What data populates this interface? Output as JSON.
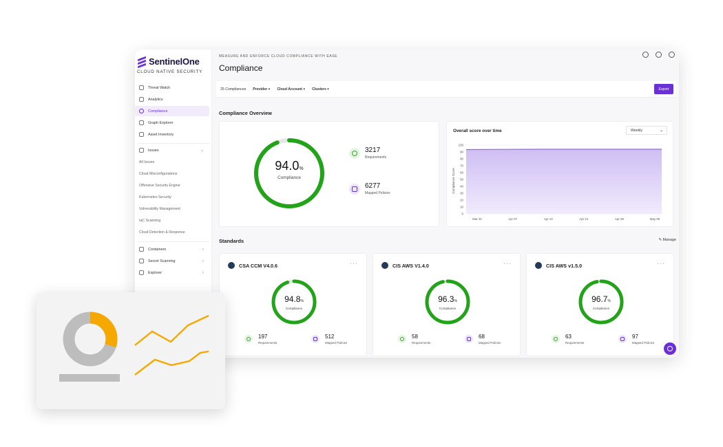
{
  "brand": {
    "name": "SentinelOne",
    "tagline": "CLOUD NATIVE SECURITY",
    "accent": "#6b2fd6"
  },
  "sidebar": {
    "primary": [
      {
        "label": "Threat Watch",
        "icon": "search-icon"
      },
      {
        "label": "Analytics",
        "icon": "bar-chart-icon"
      },
      {
        "label": "Compliance",
        "icon": "shield-check-icon",
        "active": true
      },
      {
        "label": "Graph Explorer",
        "icon": "graph-icon"
      },
      {
        "label": "Asset Inventory",
        "icon": "database-icon"
      }
    ],
    "issues": {
      "label": "Issues",
      "icon": "alert-icon",
      "items": [
        "All Issues",
        "Cloud Misconfigurations",
        "Offensive Security Engine",
        "Kubernetes Security",
        "Vulnerability Management",
        "IaC Scanning",
        "Cloud Detection & Response"
      ]
    },
    "secondary": [
      {
        "label": "Containers",
        "icon": "container-icon"
      },
      {
        "label": "Secret Scanning",
        "icon": "key-icon"
      },
      {
        "label": "Explorer",
        "icon": "compass-icon"
      }
    ]
  },
  "header": {
    "eyebrow": "MEASURE AND ENFORCE CLOUD COMPLIANCE WITH EASE",
    "title": "Compliance"
  },
  "filters": {
    "count": "25 Compliances",
    "provider": "Provider",
    "cloud_account": "Cloud Account",
    "clusters": "Clusters",
    "export_label": "Export"
  },
  "overview": {
    "title": "Compliance Overview",
    "score": "94.0",
    "score_value": 94.0,
    "unit": "%",
    "score_label": "Compliance",
    "requirements": "3217",
    "requirements_label": "Requirements",
    "policies": "6277",
    "policies_label": "Mapped Policies"
  },
  "chart_data": {
    "type": "area",
    "title": "Overall score over time",
    "ylabel": "Compliance Score",
    "xlabel": "",
    "period": "Weekly",
    "x_ticks": [
      "Mar 31",
      "Apr 07",
      "Apr 14",
      "Apr 21",
      "Apr 28",
      "May 05"
    ],
    "y_ticks": [
      "0",
      "10",
      "20",
      "30",
      "40",
      "50",
      "60",
      "70",
      "80",
      "90",
      "100"
    ],
    "ylim": [
      0,
      100
    ],
    "series": [
      {
        "values": [
          93.5,
          93.8,
          94.0,
          94.0,
          94.0,
          94.0
        ]
      }
    ],
    "grid": true,
    "color": "#8d6be0"
  },
  "standards": {
    "title": "Standards",
    "manage_label": "Manage",
    "cards": [
      {
        "name": "CSA CCM V4.0.6",
        "score": "94.8",
        "score_value": 94.8,
        "requirements": "197",
        "policies": "512"
      },
      {
        "name": "CIS AWS V1.4.0",
        "score": "96.3",
        "score_value": 96.3,
        "requirements": "58",
        "policies": "68"
      },
      {
        "name": "CIS AWS v1.5.0",
        "score": "96.7",
        "score_value": 96.7,
        "requirements": "63",
        "policies": "97"
      }
    ],
    "score_label": "Compliance",
    "requirements_label": "Requirements",
    "policies_label": "Mapped Policies",
    "unit": "%"
  },
  "colors": {
    "ring_green": "#22a31a",
    "ring_track": "#e6e6e6",
    "overlay_orange": "#f5a800",
    "overlay_gray": "#bdbdbd"
  },
  "overlay": {
    "donut_fraction": 0.3
  }
}
